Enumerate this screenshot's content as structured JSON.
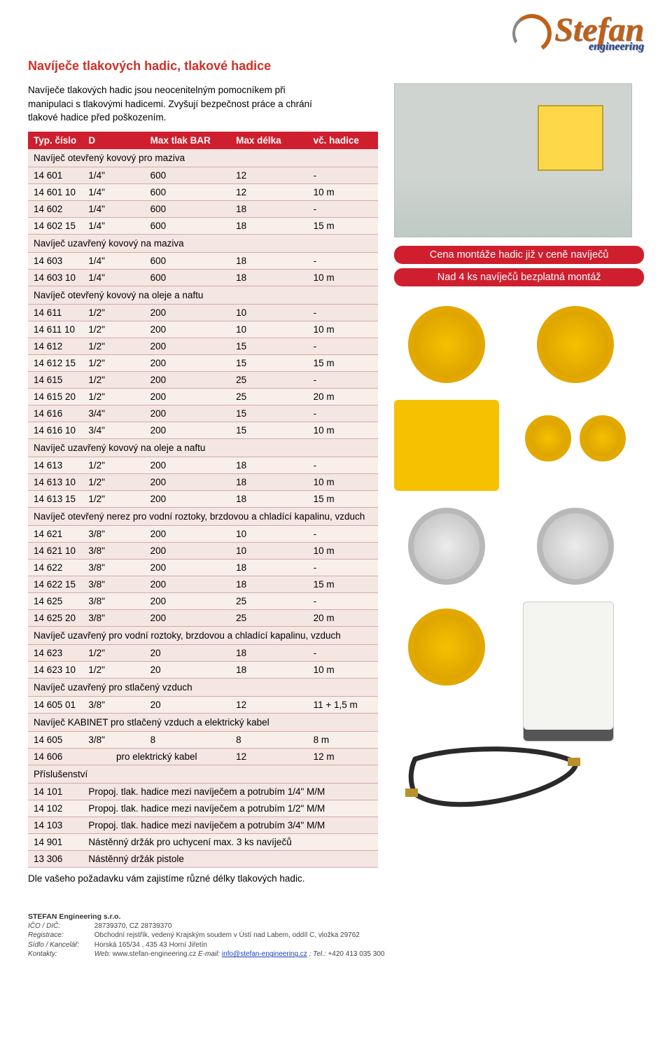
{
  "logo": {
    "brand": "Stefan",
    "subtitle": "engineering"
  },
  "title": "Navíječe tlakových hadic, tlakové hadice",
  "intro": "Navíječe tlakových hadic jsou neocenitelným pomocníkem při manipulaci s tlakovými hadicemi. Zvyšují bezpečnost práce a chrání tlakové hadice před poškozením.",
  "promo": {
    "line1": "Cena montáže hadic již v ceně navíječů",
    "line2": "Nad 4 ks navíječů bezplatná montáž"
  },
  "table": {
    "header_bg": "#cf1f2f",
    "row_bg": "#f4e6e2",
    "border_color": "#d7a8a8",
    "columns": [
      "Typ. číslo",
      "D",
      "Max tlak BAR",
      "Max délka",
      "vč. hadice"
    ],
    "sections": [
      {
        "title": "Navíječ otevřený kovový pro maziva",
        "rows": [
          [
            "14 601",
            "1/4\"",
            "600",
            "12",
            "-"
          ],
          [
            "14 601 10",
            "1/4\"",
            "600",
            "12",
            "10 m"
          ],
          [
            "14 602",
            "1/4\"",
            "600",
            "18",
            "-"
          ],
          [
            "14 602 15",
            "1/4\"",
            "600",
            "18",
            "15 m"
          ]
        ]
      },
      {
        "title": "Navíječ uzavřený kovový na maziva",
        "rows": [
          [
            "14 603",
            "1/4\"",
            "600",
            "18",
            "-"
          ],
          [
            "14 603 10",
            "1/4\"",
            "600",
            "18",
            "10 m"
          ]
        ]
      },
      {
        "title": "Navíječ otevřený kovový na oleje a naftu",
        "rows": [
          [
            "14 611",
            "1/2\"",
            "200",
            "10",
            "-"
          ],
          [
            "14 611 10",
            "1/2\"",
            "200",
            "10",
            "10 m"
          ],
          [
            "14 612",
            "1/2\"",
            "200",
            "15",
            "-"
          ],
          [
            "14 612 15",
            "1/2\"",
            "200",
            "15",
            "15 m"
          ],
          [
            "14 615",
            "1/2\"",
            "200",
            "25",
            "-"
          ],
          [
            "14 615 20",
            "1/2\"",
            "200",
            "25",
            "20 m"
          ],
          [
            "14 616",
            "3/4\"",
            "200",
            "15",
            "-"
          ],
          [
            "14 616 10",
            "3/4\"",
            "200",
            "15",
            "10 m"
          ]
        ]
      },
      {
        "title": "Navíječ uzavřený kovový na oleje a naftu",
        "rows": [
          [
            "14 613",
            "1/2\"",
            "200",
            "18",
            "-"
          ],
          [
            "14 613 10",
            "1/2\"",
            "200",
            "18",
            "10 m"
          ],
          [
            "14 613 15",
            "1/2\"",
            "200",
            "18",
            "15 m"
          ]
        ]
      },
      {
        "title": "Navíječ otevřený nerez pro vodní roztoky, brzdovou a chladící kapalinu, vzduch",
        "rows": [
          [
            "14 621",
            "3/8\"",
            "200",
            "10",
            "-"
          ],
          [
            "14 621 10",
            "3/8\"",
            "200",
            "10",
            "10 m"
          ],
          [
            "14 622",
            "3/8\"",
            "200",
            "18",
            "-"
          ],
          [
            "14 622 15",
            "3/8\"",
            "200",
            "18",
            "15 m"
          ],
          [
            "14 625",
            "3/8\"",
            "200",
            "25",
            "-"
          ],
          [
            "14 625 20",
            "3/8\"",
            "200",
            "25",
            "20 m"
          ]
        ]
      },
      {
        "title": "Navíječ uzavřený pro vodní roztoky, brzdovou a chladící kapalinu, vzduch",
        "rows": [
          [
            "14 623",
            "1/2\"",
            "20",
            "18",
            "-"
          ],
          [
            "14 623 10",
            "1/2\"",
            "20",
            "18",
            "10 m"
          ]
        ]
      },
      {
        "title": "Navíječ uzavřený pro stlačený vzduch",
        "rows": [
          [
            "14 605 01",
            "3/8\"",
            "20",
            "12",
            "11 + 1,5 m"
          ]
        ]
      },
      {
        "title": "Navíječ KABINET pro stlačený vzduch a elektrický kabel",
        "rows": [
          [
            "14 605",
            "3/8\"",
            "8",
            "8",
            "8 m"
          ],
          [
            "14 606",
            "pro elektrický kabel",
            "",
            "12",
            "12 m"
          ]
        ]
      },
      {
        "title": "Příslušenství",
        "rows": [
          [
            "14 101",
            "Propoj. tlak. hadice mezi navíječem a potrubím 1/4\" M/M",
            "",
            "",
            ""
          ],
          [
            "14 102",
            "Propoj. tlak. hadice mezi navíječem a potrubím 1/2\" M/M",
            "",
            "",
            ""
          ],
          [
            "14 103",
            "Propoj. tlak. hadice mezi navíječem a potrubím 3/4\" M/M",
            "",
            "",
            ""
          ],
          [
            "14 901",
            "Nástěnný držák pro uchycení max. 3 ks navíječů",
            "",
            "",
            ""
          ],
          [
            "13 306",
            "Nástěnný držák pistole",
            "",
            "",
            ""
          ]
        ]
      }
    ]
  },
  "closing": "Dle vašeho požadavku vám zajistíme různé délky tlakových hadic.",
  "footer": {
    "company": "STEFAN Engineering s.r.o.",
    "ico_label": "IČO / DIČ:",
    "ico": "28739370, CZ 28739370",
    "reg_label": "Registrace:",
    "reg": "Obchodní rejstřík, vedený Krajským soudem v Ústí nad Labem, oddíl C, vložka 29762",
    "sidlo_label": "Sídlo / Kancelář:",
    "sidlo": "Horská 165/34 , 435 43  Horní Jiřetín",
    "kontakt_label": "Kontakty:",
    "kontakt_web_lbl": "Web: ",
    "kontakt_web": "www.stefan-engineering.cz",
    "kontakt_email_lbl": "   E-mail: ",
    "kontakt_email": "info@stefan-engineering.cz",
    "kontakt_tel_lbl": "; Tel.: ",
    "kontakt_tel": " +420 413 035 300"
  }
}
